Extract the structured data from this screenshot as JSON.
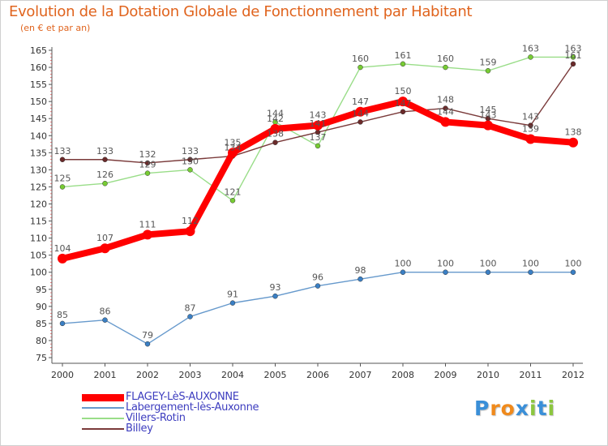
{
  "chart_data": {
    "type": "line",
    "title": "Evolution de la Dotation Globale de Fonctionnement par Habitant",
    "subtitle": "(en € et par an)",
    "xlabel": "",
    "ylabel": "",
    "ylim": [
      75,
      165
    ],
    "yticks": [
      "75",
      "80",
      "85",
      "90",
      "95",
      "100",
      "105",
      "110",
      "115",
      "120",
      "125",
      "130",
      "135",
      "140",
      "145",
      "150",
      "155",
      "160",
      "165"
    ],
    "categories": [
      "2000",
      "2001",
      "2002",
      "2003",
      "2004",
      "2005",
      "2006",
      "2007",
      "2008",
      "2009",
      "2010",
      "2011",
      "2012"
    ],
    "grid": false,
    "legend_position": "bottom-left",
    "series": [
      {
        "name": "Labergement-lès-Auxonne",
        "color": "#6699cc",
        "marker": "#3a7fc4",
        "values": [
          85,
          86,
          79,
          87,
          91,
          93,
          96,
          98,
          100,
          100,
          100,
          100,
          100
        ]
      },
      {
        "name": "Villers-Rotin",
        "color": "#99dd88",
        "marker": "#77cc33",
        "values": [
          125,
          126,
          129,
          130,
          121,
          144,
          137,
          160,
          161,
          160,
          159,
          163,
          163
        ]
      },
      {
        "name": "Billey",
        "color": "#7a3a3a",
        "marker": "#6b2a2a",
        "values": [
          133,
          133,
          132,
          133,
          134,
          138,
          141,
          144,
          147,
          148,
          145,
          143,
          161
        ]
      },
      {
        "name": "FLAGEY-LèS-AUXONNE",
        "color": "#ff0000",
        "marker": "#ff0000",
        "values": [
          104,
          107,
          111,
          112,
          135,
          142,
          143,
          147,
          150,
          144,
          143,
          139,
          138
        ]
      }
    ]
  },
  "legend": {
    "items": [
      {
        "label": "FLAGEY-LèS-AUXONNE",
        "color": "#ff0000"
      },
      {
        "label": "Labergement-lès-Auxonne",
        "color": "#6699cc"
      },
      {
        "label": "Villers-Rotin",
        "color": "#99dd88"
      },
      {
        "label": "Billey",
        "color": "#7a3a3a"
      }
    ]
  },
  "logo": {
    "letters": [
      "P",
      "r",
      "o",
      "x",
      "i",
      "t",
      "i"
    ],
    "colors": [
      "#3a8fd8",
      "#f08a1c",
      "#f08a1c",
      "#3a8fd8",
      "#8cc63f",
      "#3a8fd8",
      "#8cc63f"
    ]
  }
}
